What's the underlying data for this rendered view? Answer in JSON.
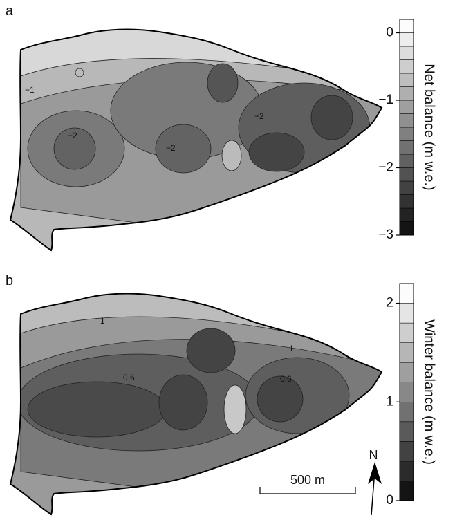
{
  "panels": [
    {
      "label": "a",
      "colorbar": {
        "label": "Net balance (m w.e.)",
        "lim": [
          -3,
          0.2
        ],
        "ticks": [
          {
            "value": 0,
            "label": "0"
          },
          {
            "value": -1,
            "label": "−1"
          },
          {
            "value": -2,
            "label": "−2"
          },
          {
            "value": -3,
            "label": "−3"
          }
        ]
      },
      "contour_labels": [
        "−1",
        "−2",
        "−2",
        "−2"
      ]
    },
    {
      "label": "b",
      "colorbar": {
        "label": "Winter balance (m w.e.)",
        "lim": [
          0,
          2.2
        ],
        "ticks": [
          0,
          1,
          2
        ]
      },
      "contour_labels": [
        "1",
        "1",
        "0.6",
        "0.6"
      ]
    }
  ],
  "scale_bar": "500 m",
  "north": "N"
}
